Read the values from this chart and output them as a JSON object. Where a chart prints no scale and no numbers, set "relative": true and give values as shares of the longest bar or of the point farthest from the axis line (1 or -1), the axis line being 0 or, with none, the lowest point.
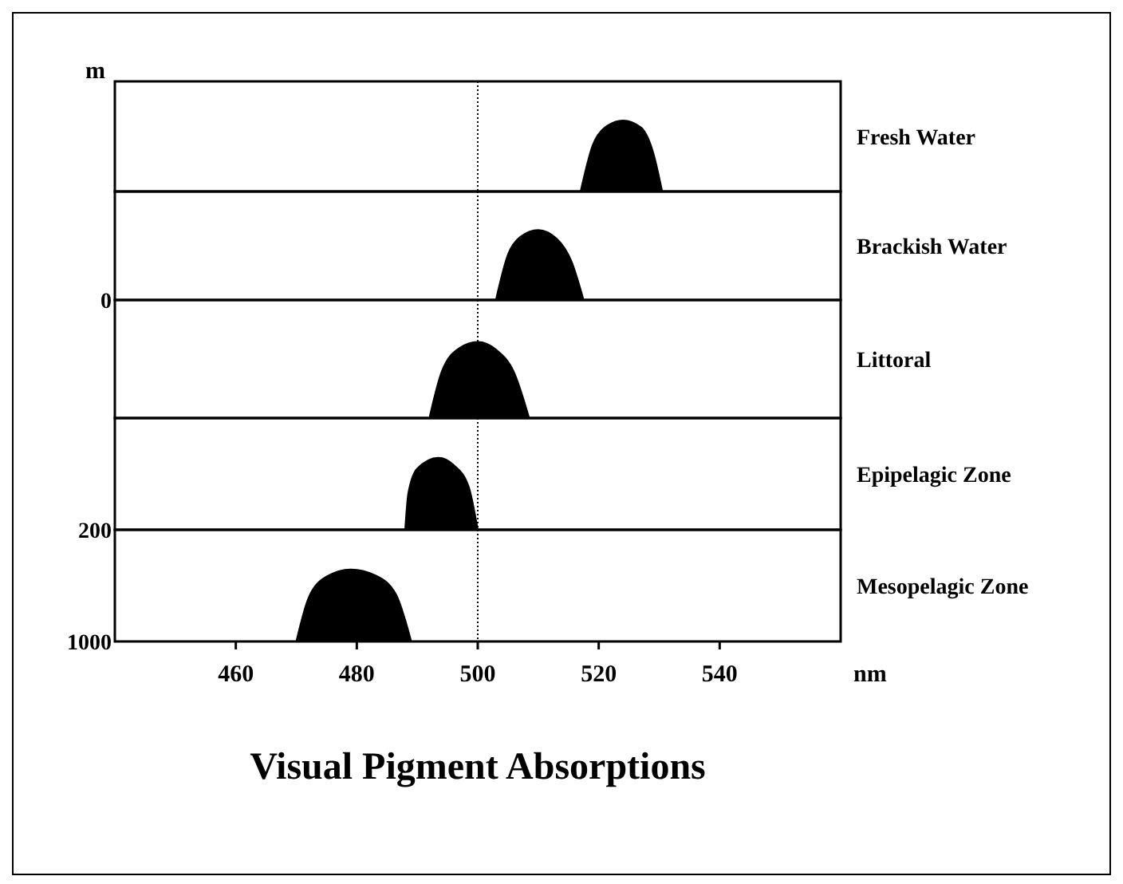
{
  "chart_data": [
    {
      "type": "area",
      "relative": true,
      "ylabel": "m",
      "xlim": [
        440,
        560
      ],
      "tick_labels": false,
      "ref_lines": [
        {
          "axis": "x",
          "value": 500,
          "line_style": "dotted"
        }
      ],
      "series": [
        {
          "name": "Fresh Water",
          "color": "#000000",
          "x": [
            517,
            519,
            521,
            524,
            527,
            529,
            530.5
          ],
          "values": [
            0,
            0.65,
            0.9,
            1,
            0.9,
            0.55,
            0
          ]
        }
      ]
    },
    {
      "type": "area",
      "relative": true,
      "xlim": [
        440,
        560
      ],
      "tick_labels": false,
      "annotations": [
        "0"
      ],
      "ref_lines": [
        {
          "axis": "x",
          "value": 500,
          "line_style": "dotted"
        }
      ],
      "series": [
        {
          "name": "Brackish Water",
          "color": "#000000",
          "x": [
            503,
            505,
            507,
            510,
            513,
            515.5,
            517.5
          ],
          "values": [
            0,
            0.65,
            0.9,
            1,
            0.88,
            0.55,
            0
          ]
        }
      ]
    },
    {
      "type": "area",
      "relative": true,
      "xlim": [
        440,
        560
      ],
      "tick_labels": false,
      "ref_lines": [
        {
          "axis": "x",
          "value": 500,
          "line_style": "dotted"
        }
      ],
      "series": [
        {
          "name": "Littoral",
          "color": "#000000",
          "x": [
            492,
            494,
            497,
            500,
            503,
            506,
            508.5
          ],
          "values": [
            0,
            0.6,
            0.92,
            1,
            0.9,
            0.6,
            0
          ]
        }
      ]
    },
    {
      "type": "area",
      "relative": true,
      "xlim": [
        440,
        560
      ],
      "tick_labels": false,
      "annotations": [
        "200"
      ],
      "ref_lines": [
        {
          "axis": "x",
          "value": 500,
          "line_style": "dotted"
        }
      ],
      "series": [
        {
          "name": "Epipelagic Zone",
          "color": "#000000",
          "x": [
            488,
            488.5,
            490,
            493.5,
            496,
            498.5,
            500
          ],
          "values": [
            0,
            0.5,
            0.85,
            1,
            0.9,
            0.6,
            0
          ]
        }
      ]
    },
    {
      "type": "area",
      "relative": true,
      "title": "Visual Pigment Absorptions",
      "xlabel": "nm",
      "xlim": [
        440,
        560
      ],
      "xticks": [
        460,
        480,
        500,
        520,
        540
      ],
      "tick_labels": "x",
      "annotations": [
        "1000"
      ],
      "ref_lines": [
        {
          "axis": "x",
          "value": 500,
          "line_style": "dotted"
        }
      ],
      "series": [
        {
          "name": "Mesopelagic Zone",
          "color": "#000000",
          "x": [
            470,
            472,
            475,
            479,
            483,
            486.5,
            489
          ],
          "values": [
            0,
            0.6,
            0.9,
            1,
            0.92,
            0.65,
            0
          ]
        }
      ]
    }
  ]
}
